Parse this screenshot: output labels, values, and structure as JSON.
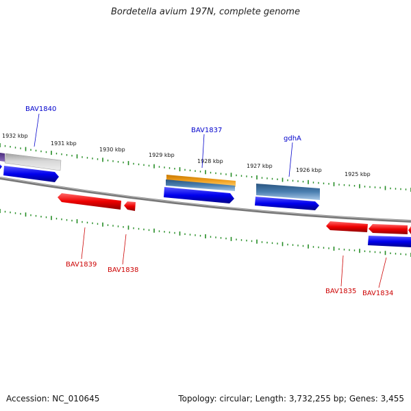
{
  "title": "Bordetella avium 197N, complete genome",
  "footer": {
    "accession": "Accession: NC_010645",
    "summary": "Topology: circular; Length: 3,732,255 bp; Genes: 3,455"
  },
  "colors": {
    "forward_cds": "#0000ee",
    "reverse_cds": "#ee0000",
    "forward_label": "#0000cc",
    "reverse_label": "#cc0000",
    "ticks": "#228b22",
    "backbone": "#808080",
    "gray_gene": "#c8c8c8",
    "orange_gene": "#f0a020",
    "steelblue_gene": "#4a7fb0",
    "purple_gene": "#6a4c9c"
  },
  "kbp_labels": [
    "1932 kbp",
    "1931 kbp",
    "1930 kbp",
    "1929 kbp",
    "1928 kbp",
    "1927 kbp",
    "1926 kbp",
    "1925 kbp"
  ],
  "forward_gene_labels": [
    "BAV1840",
    "BAV1837",
    "gdhA"
  ],
  "reverse_gene_labels": [
    "BAV1839",
    "BAV1838",
    "BAV1835",
    "BAV1834"
  ]
}
